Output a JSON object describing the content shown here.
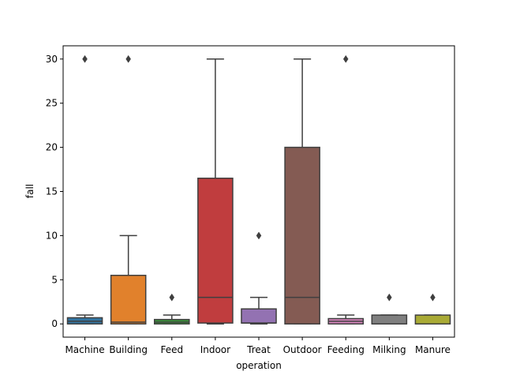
{
  "chart_data": {
    "type": "box",
    "xlabel": "operation",
    "ylabel": "fall",
    "ylim": [
      -1.5,
      31.5
    ],
    "yticks": [
      0,
      5,
      10,
      15,
      20,
      25,
      30
    ],
    "grid": false,
    "categories": [
      "Machine",
      "Building",
      "Feed",
      "Indoor",
      "Treat",
      "Outdoor",
      "Feeding",
      "Milking",
      "Manure"
    ],
    "boxes": [
      {
        "category": "Machine",
        "color": "#3274a1",
        "whisker_low": 0,
        "q1": 0,
        "median": 0.3,
        "q3": 0.7,
        "whisker_high": 1,
        "outliers": [
          30
        ]
      },
      {
        "category": "Building",
        "color": "#e1812c",
        "whisker_low": 0,
        "q1": 0,
        "median": 0.2,
        "q3": 5.5,
        "whisker_high": 10,
        "outliers": [
          30
        ]
      },
      {
        "category": "Feed",
        "color": "#3a923a",
        "whisker_low": 0,
        "q1": 0,
        "median": 0.2,
        "q3": 0.5,
        "whisker_high": 1,
        "outliers": [
          3
        ]
      },
      {
        "category": "Indoor",
        "color": "#c03d3e",
        "whisker_low": 0,
        "q1": 0.1,
        "median": 3,
        "q3": 16.5,
        "whisker_high": 30,
        "outliers": []
      },
      {
        "category": "Treat",
        "color": "#9372b2",
        "whisker_low": 0,
        "q1": 0.1,
        "median": 0.1,
        "q3": 1.7,
        "whisker_high": 3,
        "outliers": [
          10
        ]
      },
      {
        "category": "Outdoor",
        "color": "#845b53",
        "whisker_low": 0,
        "q1": 0,
        "median": 3,
        "q3": 20,
        "whisker_high": 30,
        "outliers": []
      },
      {
        "category": "Feeding",
        "color": "#d684bd",
        "whisker_low": 0,
        "q1": 0,
        "median": 0.3,
        "q3": 0.6,
        "whisker_high": 1,
        "outliers": [
          30
        ]
      },
      {
        "category": "Milking",
        "color": "#7f7f7f",
        "whisker_low": 0,
        "q1": 0,
        "median": 0,
        "q3": 1,
        "whisker_high": 1,
        "outliers": [
          3
        ]
      },
      {
        "category": "Manure",
        "color": "#a9aa35",
        "whisker_low": 0,
        "q1": 0,
        "median": 0,
        "q3": 1,
        "whisker_high": 1,
        "outliers": [
          3
        ]
      }
    ]
  }
}
